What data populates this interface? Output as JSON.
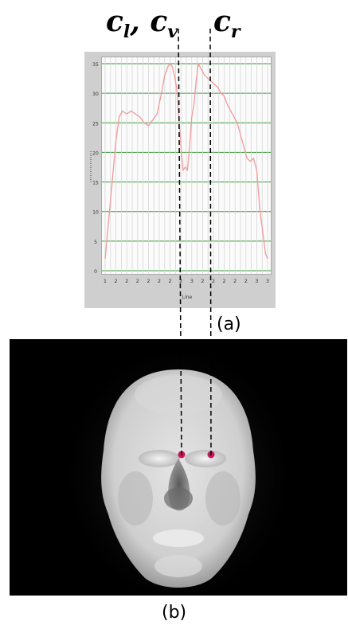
{
  "labels": {
    "left_group": "c_l, c_v",
    "right": "c_r",
    "caption_a": "(a)",
    "caption_b": "(b)"
  },
  "chart_data": {
    "type": "line",
    "y_ticks": [
      "0",
      "5",
      "10",
      "15",
      "20",
      "25",
      "30",
      "35"
    ],
    "x_ticks": [
      "1",
      "2",
      "2",
      "2",
      "2",
      "2",
      "2",
      "2",
      "3",
      "2",
      "2",
      "2",
      "2",
      "2",
      "3",
      "3"
    ],
    "xlabel": "Line",
    "ylim": [
      0,
      35
    ],
    "grid": true,
    "series_color": "#f29a9a",
    "series": [
      {
        "x": [
          0.0,
          0.3,
          0.7,
          1.0,
          1.3,
          1.6,
          2.0,
          2.4,
          2.8,
          3.2,
          3.6,
          4.0,
          4.4,
          4.8,
          5.2,
          5.5,
          5.8,
          6.0,
          6.2,
          6.4,
          6.6,
          6.8,
          7.0,
          7.2,
          7.4,
          7.6,
          7.8,
          8.0,
          8.2,
          8.4,
          8.6,
          8.9,
          9.2,
          9.5,
          9.8,
          10.1,
          10.4,
          10.7,
          11.0,
          11.3,
          11.6,
          11.9,
          12.2,
          12.5,
          12.8,
          13.1,
          13.4,
          13.7,
          14.0,
          14.3,
          14.6,
          14.8,
          15.0
        ],
        "y": [
          2,
          8,
          16,
          22,
          26,
          27,
          26.5,
          27,
          26.5,
          26,
          25,
          24.5,
          25.5,
          26.5,
          30,
          33,
          34.5,
          35,
          34.5,
          33,
          31,
          26,
          21,
          17,
          17.5,
          17,
          21,
          26,
          28,
          32,
          35,
          34,
          33,
          32.5,
          32,
          31.5,
          31,
          30,
          29.5,
          28,
          27,
          26,
          25,
          23,
          21,
          19,
          18.5,
          19,
          17,
          10,
          6,
          3,
          2
        ]
      }
    ],
    "markers": [
      {
        "name": "c_l, c_v",
        "x": 6.8
      },
      {
        "name": "c_r",
        "x": 10.4
      }
    ]
  },
  "thermal_image": {
    "description_tokens": [
      "face-thermal"
    ],
    "dot_color": "#c8185a",
    "background": "#000000"
  }
}
